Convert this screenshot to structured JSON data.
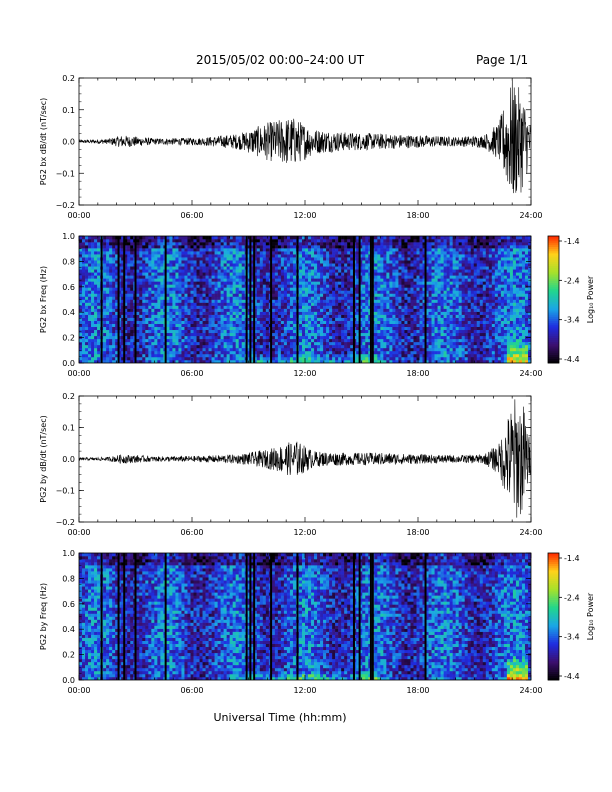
{
  "header": {
    "title": "2015/05/02  00:00–24:00 UT",
    "page": "Page 1/1"
  },
  "xlabel": "Universal Time (hh:mm)",
  "colors": {
    "line": "#000000",
    "colormap": [
      "#000000",
      "#3b0f6f",
      "#1f2ce0",
      "#1aa6e6",
      "#22d68c",
      "#a6e12b",
      "#ffd21a",
      "#ff2a00"
    ]
  },
  "chart_data": [
    {
      "type": "line",
      "id": "bx",
      "ylabel": "PG2 bx dB/dt (nT/sec)",
      "x_ticks": [
        "00:00",
        "06:00",
        "12:00",
        "18:00",
        "24:00"
      ],
      "xlim": [
        0,
        24
      ],
      "ylim": [
        -0.2,
        0.2
      ],
      "y_ticks": [
        "0.2",
        "0.1",
        "0.0",
        "−0.1",
        "−0.2"
      ],
      "envelope": [
        {
          "t": 0.0,
          "amp": 0.005
        },
        {
          "t": 1.5,
          "amp": 0.008
        },
        {
          "t": 2.3,
          "amp": 0.02
        },
        {
          "t": 4.0,
          "amp": 0.01
        },
        {
          "t": 6.5,
          "amp": 0.012
        },
        {
          "t": 8.5,
          "amp": 0.025
        },
        {
          "t": 10.0,
          "amp": 0.06
        },
        {
          "t": 11.3,
          "amp": 0.08
        },
        {
          "t": 12.5,
          "amp": 0.04
        },
        {
          "t": 14.0,
          "amp": 0.03
        },
        {
          "t": 16.0,
          "amp": 0.025
        },
        {
          "t": 18.0,
          "amp": 0.02
        },
        {
          "t": 20.0,
          "amp": 0.015
        },
        {
          "t": 21.5,
          "amp": 0.02
        },
        {
          "t": 22.3,
          "amp": 0.06
        },
        {
          "t": 23.0,
          "amp": 0.2
        },
        {
          "t": 23.6,
          "amp": 0.15
        },
        {
          "t": 24.0,
          "amp": 0.05
        }
      ]
    },
    {
      "type": "heatmap",
      "id": "bx_spec",
      "ylabel": "PG2 bx Freq (Hz)",
      "x_ticks": [
        "00:00",
        "06:00",
        "12:00",
        "18:00",
        "24:00"
      ],
      "xlim": [
        0,
        24
      ],
      "ylim": [
        0,
        1
      ],
      "y_ticks": [
        "1.0",
        "0.8",
        "0.6",
        "0.4",
        "0.2",
        "0.0"
      ],
      "colorbar": {
        "label": "Log₁₀ Power",
        "ticks": [
          "-1.4",
          "-2.4",
          "-3.4",
          "-4.4"
        ],
        "range": [
          -4.4,
          -1.4
        ]
      },
      "data_gaps_hours": [
        1.2,
        2.1,
        2.4,
        3.0,
        4.6,
        8.9,
        9.1,
        9.3,
        10.2,
        11.6,
        14.6,
        14.9,
        15.5,
        15.6,
        18.4
      ]
    },
    {
      "type": "line",
      "id": "by",
      "ylabel": "PG2 by dB/dt (nT/sec)",
      "x_ticks": [
        "00:00",
        "06:00",
        "12:00",
        "18:00",
        "24:00"
      ],
      "xlim": [
        0,
        24
      ],
      "ylim": [
        -0.2,
        0.2
      ],
      "y_ticks": [
        "0.2",
        "0.1",
        "0.0",
        "−0.1",
        "−0.2"
      ],
      "envelope": [
        {
          "t": 0.0,
          "amp": 0.004
        },
        {
          "t": 1.5,
          "amp": 0.006
        },
        {
          "t": 2.3,
          "amp": 0.015
        },
        {
          "t": 4.0,
          "amp": 0.008
        },
        {
          "t": 6.5,
          "amp": 0.01
        },
        {
          "t": 8.5,
          "amp": 0.015
        },
        {
          "t": 10.0,
          "amp": 0.03
        },
        {
          "t": 11.5,
          "amp": 0.06
        },
        {
          "t": 12.5,
          "amp": 0.025
        },
        {
          "t": 14.0,
          "amp": 0.02
        },
        {
          "t": 16.0,
          "amp": 0.02
        },
        {
          "t": 18.0,
          "amp": 0.015
        },
        {
          "t": 20.0,
          "amp": 0.012
        },
        {
          "t": 21.5,
          "amp": 0.015
        },
        {
          "t": 22.3,
          "amp": 0.05
        },
        {
          "t": 23.1,
          "amp": 0.2
        },
        {
          "t": 23.6,
          "amp": 0.18
        },
        {
          "t": 24.0,
          "amp": 0.04
        }
      ]
    },
    {
      "type": "heatmap",
      "id": "by_spec",
      "ylabel": "PG2 by Freq (Hz)",
      "x_ticks": [
        "00:00",
        "06:00",
        "12:00",
        "18:00",
        "24:00"
      ],
      "xlim": [
        0,
        24
      ],
      "ylim": [
        0,
        1
      ],
      "y_ticks": [
        "1.0",
        "0.8",
        "0.6",
        "0.4",
        "0.2",
        "0.0"
      ],
      "colorbar": {
        "label": "Log₁₀ Power",
        "ticks": [
          "-1.4",
          "-2.4",
          "-3.4",
          "-4.4"
        ],
        "range": [
          -4.4,
          -1.4
        ]
      },
      "data_gaps_hours": [
        1.2,
        2.1,
        2.4,
        3.0,
        4.6,
        8.9,
        9.1,
        9.3,
        10.2,
        11.6,
        14.6,
        14.9,
        15.5,
        15.6,
        18.4
      ]
    }
  ]
}
